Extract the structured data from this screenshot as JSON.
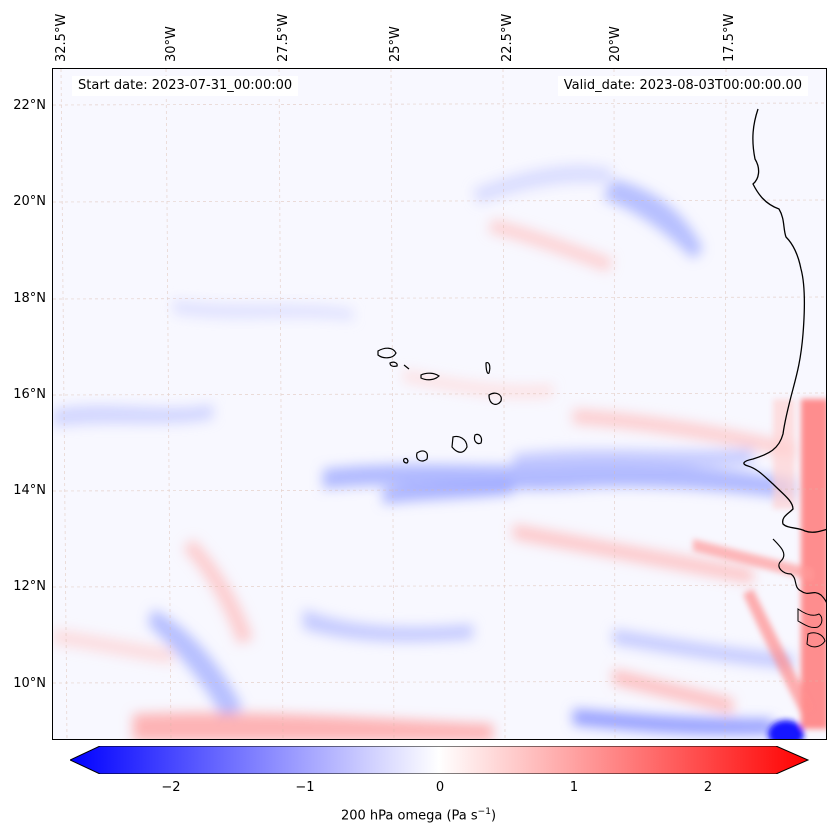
{
  "header": {
    "start_date": "Start date: 2023-07-31_00:00:00",
    "valid_date": "Valid_date: 2023-08-03T00:00:00.00"
  },
  "axes": {
    "lon_labels": [
      "32.5°W",
      "30°W",
      "27.5°W",
      "25°W",
      "22.5°W",
      "20°W",
      "17.5°W"
    ],
    "lat_labels": [
      "22°N",
      "20°N",
      "18°N",
      "16°N",
      "14°N",
      "12°N",
      "10°N"
    ]
  },
  "colorbar": {
    "ticks": [
      "−2",
      "−1",
      "0",
      "1",
      "2"
    ],
    "label_main": "200 hPa omega (Pa s",
    "label_sup": "−1",
    "label_end": ")",
    "min": -2.7,
    "max": 2.7,
    "colors": {
      "neg": "#0000ff",
      "mid": "#ffffff",
      "pos": "#ff0000"
    }
  }
}
